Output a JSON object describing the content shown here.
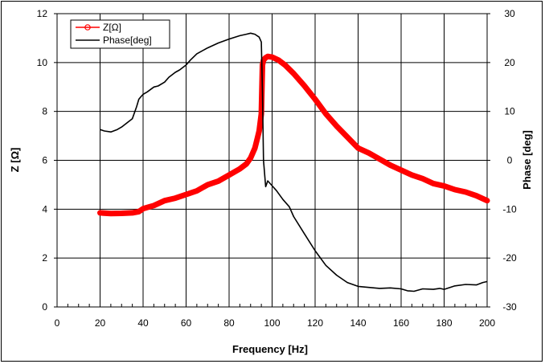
{
  "chart_data": {
    "type": "line",
    "title": "",
    "xlabel": "Frequency [Hz]",
    "ylabel": "Z [Ω]",
    "y2label": "Phase [deg]",
    "xlim": [
      0,
      200
    ],
    "ylim": [
      0,
      12
    ],
    "y2lim": [
      -30,
      30
    ],
    "xticks": [
      "0",
      "20",
      "40",
      "60",
      "80",
      "100",
      "120",
      "140",
      "160",
      "180",
      "200"
    ],
    "yticks": [
      "0",
      "2",
      "4",
      "6",
      "8",
      "10",
      "12"
    ],
    "y2ticks": [
      "-30",
      "-20",
      "-10",
      "0",
      "10",
      "20",
      "30"
    ],
    "grid": true,
    "legend_position": "top-left",
    "series": [
      {
        "name": "Z[Ω]",
        "axis": "left",
        "color": "#ff0000",
        "marker": "circle",
        "x": [
          20,
          25,
          30,
          35,
          38,
          40,
          45,
          50,
          55,
          60,
          65,
          70,
          75,
          80,
          85,
          88,
          90,
          92,
          93,
          94,
          95,
          95.5,
          96,
          96.5,
          97,
          98,
          100,
          103,
          106,
          110,
          115,
          120,
          125,
          130,
          135,
          140,
          145,
          150,
          155,
          160,
          165,
          170,
          175,
          180,
          185,
          190,
          195,
          200
        ],
        "y": [
          3.85,
          3.82,
          3.83,
          3.85,
          3.9,
          4.02,
          4.15,
          4.35,
          4.45,
          4.6,
          4.75,
          5.0,
          5.15,
          5.4,
          5.65,
          5.85,
          6.1,
          6.5,
          6.85,
          7.2,
          7.9,
          9.9,
          10.1,
          10.15,
          10.2,
          10.25,
          10.22,
          10.1,
          9.9,
          9.55,
          9.05,
          8.5,
          7.9,
          7.4,
          6.95,
          6.5,
          6.3,
          6.05,
          5.8,
          5.6,
          5.4,
          5.25,
          5.05,
          4.95,
          4.8,
          4.7,
          4.55,
          4.35
        ],
        "values_right_scale_note": ""
      },
      {
        "name": "Phase[deg]",
        "axis": "right",
        "color": "#000000",
        "marker": "none",
        "x": [
          20,
          22,
          25,
          28,
          30,
          35,
          37,
          38,
          39,
          40,
          42,
          45,
          47,
          50,
          52,
          55,
          57,
          60,
          62,
          65,
          70,
          75,
          80,
          85,
          88,
          90,
          92,
          94,
          95,
          95.5,
          96,
          97,
          98,
          100,
          102,
          105,
          108,
          110,
          115,
          120,
          125,
          130,
          135,
          140,
          145,
          150,
          155,
          160,
          163,
          166,
          170,
          175,
          178,
          180,
          185,
          190,
          195,
          198,
          200
        ],
        "y": [
          6.3,
          6,
          5.8,
          6.3,
          6.8,
          8.5,
          11,
          12.5,
          13,
          13.5,
          14,
          15,
          15.2,
          16,
          17,
          18,
          18.5,
          19.5,
          20.5,
          21.8,
          23,
          24,
          24.8,
          25.5,
          25.8,
          26,
          25.8,
          25.2,
          24.2,
          14,
          0,
          -5.4,
          -4.2,
          -5.2,
          -6.2,
          -8,
          -9.5,
          -11.5,
          -15,
          -18.5,
          -21.5,
          -23.5,
          -25,
          -25.8,
          -26,
          -26.2,
          -26.1,
          -26.3,
          -26.7,
          -26.8,
          -26.3,
          -26.4,
          -26.2,
          -26.4,
          -25.7,
          -25.4,
          -25.5,
          -25,
          -24.8
        ]
      }
    ]
  }
}
